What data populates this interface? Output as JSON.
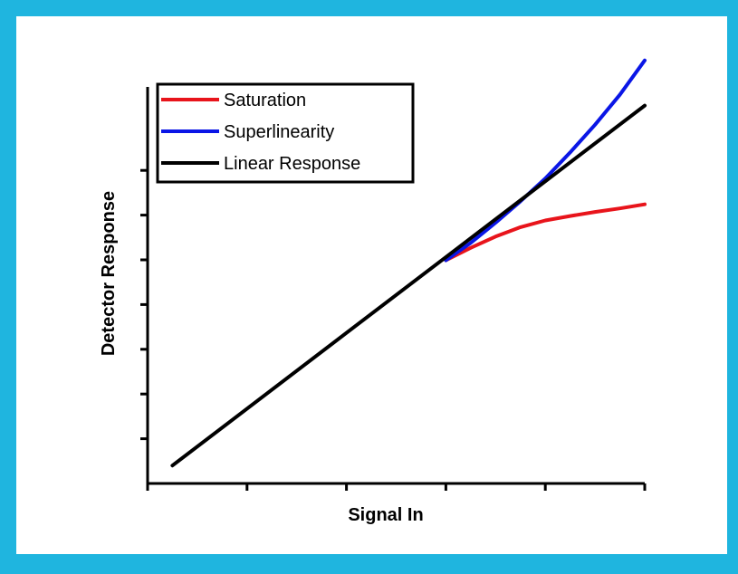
{
  "colors": {
    "frame": "#1fb5df",
    "axis": "#000000"
  },
  "chart_data": {
    "type": "line",
    "xlabel": "Signal In",
    "ylabel": "Detector Response",
    "xlim": [
      0,
      10
    ],
    "ylim": [
      0,
      10
    ],
    "ticks_labeled": false,
    "x_ticks": [
      0,
      2,
      4,
      6,
      8,
      10
    ],
    "y_ticks": [
      1,
      2,
      3,
      4,
      5,
      6,
      7
    ],
    "grid": false,
    "legend": {
      "position": "top-left",
      "boxed": true
    },
    "series": [
      {
        "name": "Saturation",
        "color": "#e8141b",
        "x": [
          6.0,
          6.5,
          7.0,
          7.5,
          8.0,
          8.5,
          9.0,
          9.5,
          10.0
        ],
        "y": [
          4.99,
          5.27,
          5.52,
          5.73,
          5.88,
          5.98,
          6.07,
          6.15,
          6.24
        ]
      },
      {
        "name": "Superlinearity",
        "color": "#0a16e6",
        "x": [
          6.0,
          6.5,
          7.0,
          7.5,
          8.0,
          8.5,
          9.0,
          9.5,
          10.0
        ],
        "y": [
          4.99,
          5.38,
          5.83,
          6.31,
          6.82,
          7.4,
          8.02,
          8.69,
          9.46
        ]
      },
      {
        "name": "Linear Response",
        "color": "#000000",
        "x": [
          0.5,
          10.0
        ],
        "y": [
          0.4,
          8.45
        ]
      }
    ]
  }
}
